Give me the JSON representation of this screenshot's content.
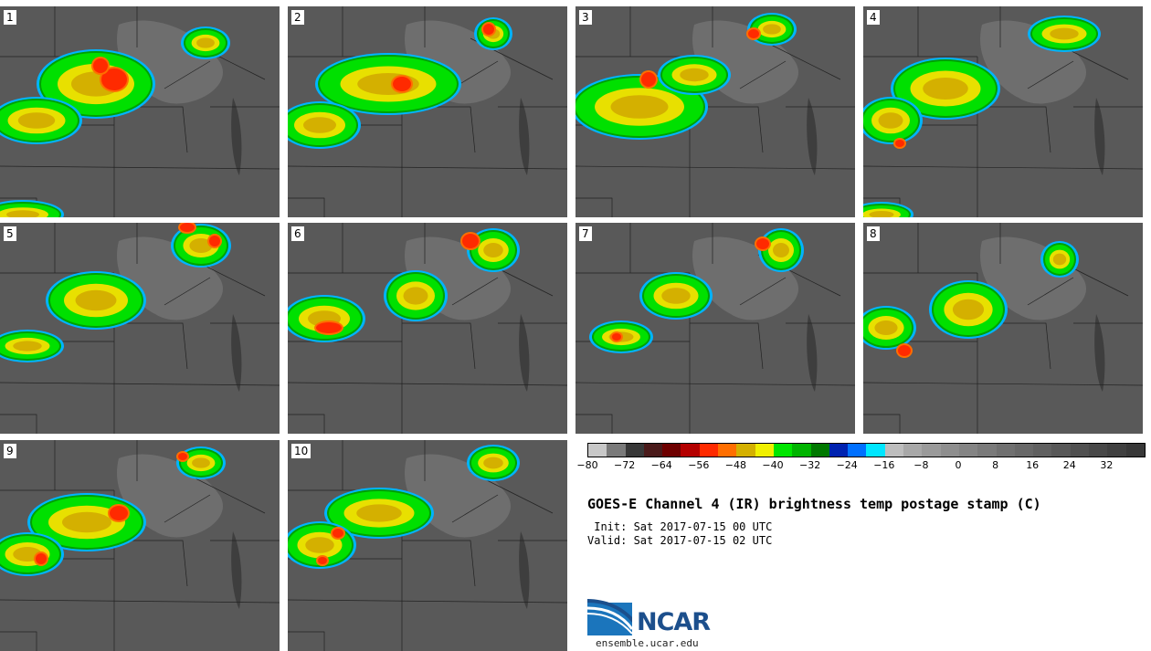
{
  "panels": [
    {
      "label": "1",
      "storms": [
        [
          105,
          85,
          60,
          34
        ],
        [
          40,
          125,
          45,
          22
        ],
        [
          25,
          228,
          40,
          12
        ],
        [
          225,
          40,
          22,
          14
        ]
      ],
      "cores": [
        [
          125,
          80,
          14,
          12
        ],
        [
          110,
          65,
          8,
          8
        ]
      ]
    },
    {
      "label": "2",
      "storms": [
        [
          110,
          85,
          75,
          30
        ],
        [
          35,
          130,
          40,
          22
        ],
        [
          225,
          30,
          16,
          14
        ]
      ],
      "cores": [
        [
          125,
          85,
          10,
          8
        ],
        [
          220,
          25,
          6,
          6
        ]
      ]
    },
    {
      "label": "3",
      "storms": [
        [
          70,
          110,
          70,
          32
        ],
        [
          130,
          75,
          35,
          18
        ],
        [
          215,
          25,
          22,
          14
        ]
      ],
      "cores": [
        [
          80,
          80,
          8,
          8
        ],
        [
          195,
          30,
          6,
          5
        ]
      ]
    },
    {
      "label": "4",
      "storms": [
        [
          90,
          90,
          55,
          30
        ],
        [
          30,
          125,
          30,
          22
        ],
        [
          220,
          30,
          35,
          16
        ],
        [
          20,
          228,
          30,
          10
        ]
      ],
      "cores": [
        [
          40,
          150,
          5,
          4
        ]
      ]
    },
    {
      "label": "5",
      "storms": [
        [
          105,
          85,
          50,
          28
        ],
        [
          30,
          135,
          35,
          14
        ],
        [
          220,
          25,
          28,
          20
        ]
      ],
      "cores": [
        [
          205,
          5,
          8,
          5
        ],
        [
          235,
          20,
          6,
          6
        ]
      ]
    },
    {
      "label": "6",
      "storms": [
        [
          140,
          80,
          30,
          24
        ],
        [
          40,
          105,
          40,
          22
        ],
        [
          225,
          30,
          24,
          20
        ]
      ],
      "cores": [
        [
          200,
          20,
          9,
          8
        ],
        [
          45,
          115,
          14,
          6
        ]
      ]
    },
    {
      "label": "7",
      "storms": [
        [
          110,
          80,
          35,
          22
        ],
        [
          50,
          125,
          30,
          14
        ],
        [
          225,
          30,
          20,
          20
        ]
      ],
      "cores": [
        [
          205,
          23,
          7,
          6
        ],
        [
          45,
          125,
          5,
          4
        ]
      ]
    },
    {
      "label": "8",
      "storms": [
        [
          115,
          95,
          38,
          28
        ],
        [
          25,
          115,
          28,
          20
        ],
        [
          215,
          40,
          16,
          16
        ]
      ],
      "cores": [
        [
          45,
          140,
          7,
          6
        ]
      ]
    },
    {
      "label": "9",
      "storms": [
        [
          95,
          90,
          60,
          28
        ],
        [
          30,
          125,
          35,
          20
        ],
        [
          220,
          25,
          22,
          14
        ]
      ],
      "cores": [
        [
          130,
          80,
          10,
          8
        ],
        [
          45,
          130,
          6,
          6
        ],
        [
          200,
          18,
          5,
          4
        ]
      ]
    },
    {
      "label": "10",
      "storms": [
        [
          100,
          80,
          55,
          24
        ],
        [
          35,
          115,
          35,
          22
        ],
        [
          225,
          25,
          24,
          16
        ]
      ],
      "cores": [
        [
          55,
          102,
          6,
          5
        ],
        [
          38,
          132,
          5,
          4
        ]
      ]
    }
  ],
  "colorbar": {
    "colors": [
      "#c8c8c8",
      "#7a7a7a",
      "#383838",
      "#4a1a1a",
      "#6e0000",
      "#b40000",
      "#ff2a00",
      "#ff6e00",
      "#d4b000",
      "#f0f000",
      "#00e600",
      "#00b400",
      "#007800",
      "#0022b0",
      "#0070ff",
      "#00e6ff",
      "#bdbdbd",
      "#a8a8a8",
      "#9a9a9a",
      "#8e8e8e",
      "#848484",
      "#7a7a7a",
      "#707070",
      "#686868",
      "#606060",
      "#585858",
      "#505050",
      "#484848",
      "#404040",
      "#383838"
    ],
    "tick_labels": [
      "−80",
      "−72",
      "−64",
      "−56",
      "−48",
      "−40",
      "−32",
      "−24",
      "−16",
      "−8",
      "0",
      "8",
      "16",
      "24",
      "32"
    ]
  },
  "title": "GOES-E Channel 4 (IR) brightness temp postage stamp (C)",
  "init_text": " Init: Sat 2017-07-15 00 UTC",
  "valid_text": "Valid: Sat 2017-07-15 02 UTC",
  "logo": {
    "text": "NCAR",
    "url": "ensemble.ucar.edu"
  }
}
